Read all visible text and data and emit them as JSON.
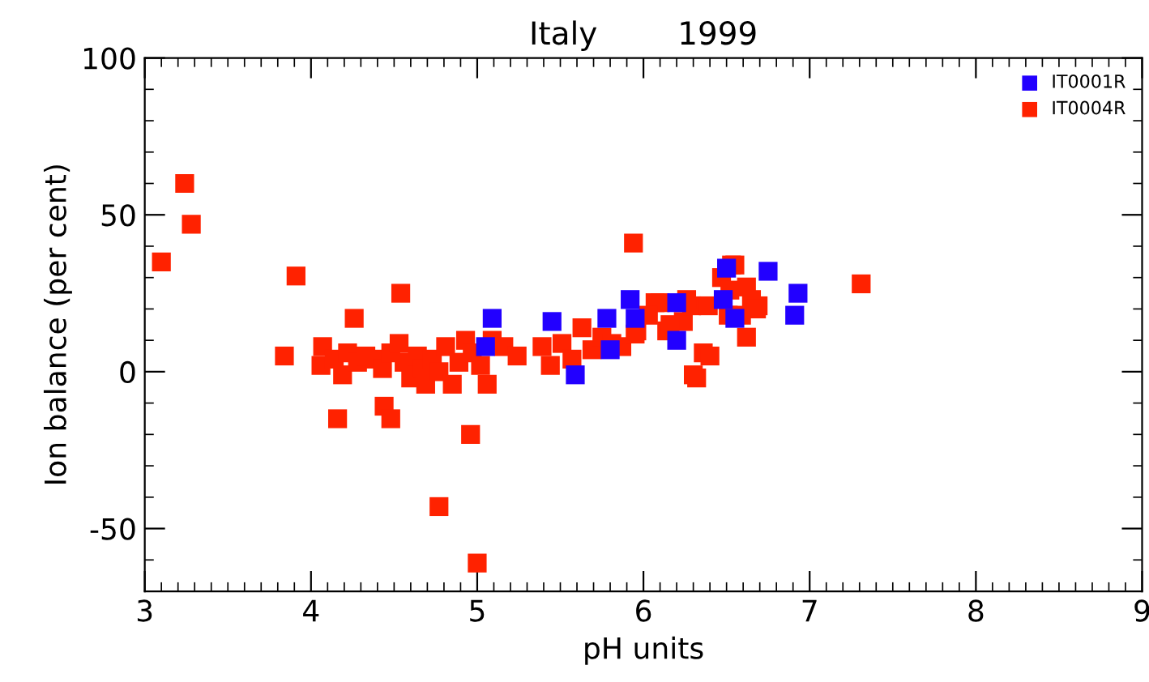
{
  "chart_data": {
    "type": "scatter",
    "title": "Italy        1999",
    "xlabel": "pH units",
    "ylabel": "Ion balance (per cent)",
    "xlim": [
      3,
      9
    ],
    "ylim": [
      -70,
      100
    ],
    "xticks": [
      3,
      4,
      5,
      6,
      7,
      8,
      9
    ],
    "yticks": [
      -50,
      0,
      50,
      100
    ],
    "marker": "square",
    "legend": "top right",
    "grid": false,
    "series": [
      {
        "name": "IT0001R",
        "color": "#2200ff",
        "x": [
          5.09,
          5.45,
          5.92,
          5.78,
          5.59,
          5.8,
          5.05,
          6.2,
          6.2,
          6.48,
          6.5,
          6.55,
          6.75,
          6.93,
          6.91,
          5.95
        ],
        "values": [
          17,
          16,
          23,
          17,
          -1,
          7,
          8,
          22,
          10,
          23,
          33,
          17,
          32,
          25,
          18,
          17
        ]
      },
      {
        "name": "IT0004R",
        "color": "#ff2200",
        "x": [
          3.1,
          3.24,
          3.28,
          3.84,
          3.91,
          4.26,
          4.16,
          4.54,
          4.44,
          4.48,
          4.77,
          4.96,
          5.0,
          5.06,
          5.94,
          7.31,
          4.07,
          4.06,
          4.14,
          4.19,
          4.22,
          4.28,
          4.33,
          4.38,
          4.43,
          4.48,
          4.53,
          4.56,
          4.6,
          4.64,
          4.67,
          4.69,
          4.73,
          4.77,
          4.81,
          4.85,
          4.89,
          4.93,
          4.97,
          5.02,
          5.09,
          5.16,
          5.24,
          5.39,
          5.44,
          5.51,
          5.57,
          5.63,
          5.69,
          5.75,
          5.81,
          5.87,
          5.95,
          6.07,
          6.14,
          6.24,
          6.29,
          6.32,
          6.36,
          6.4,
          6.47,
          6.52,
          6.55,
          6.59,
          6.62,
          6.65,
          6.69,
          6.51,
          6.53,
          6.62,
          6.68,
          6.3,
          6.26,
          6.39,
          6.1,
          6.03,
          5.96,
          6.16
        ],
        "values": [
          35,
          60,
          47,
          5,
          30.5,
          17,
          -15,
          25,
          -11,
          -15,
          -43,
          -20,
          -61,
          -4,
          41,
          28,
          8,
          2,
          4,
          -1,
          6,
          3,
          5,
          4,
          1,
          6,
          9,
          3,
          -2,
          5,
          1,
          -4,
          4,
          0,
          8,
          -4,
          3,
          10,
          6,
          2,
          10,
          8,
          5,
          8,
          2,
          9,
          4,
          14,
          7,
          11,
          9,
          8,
          12,
          22,
          13,
          16,
          21,
          -2,
          6,
          5,
          30,
          26,
          34,
          18,
          11,
          23,
          21,
          18,
          34,
          27,
          20,
          -1,
          23,
          21,
          22,
          18,
          13,
          15
        ]
      }
    ]
  }
}
